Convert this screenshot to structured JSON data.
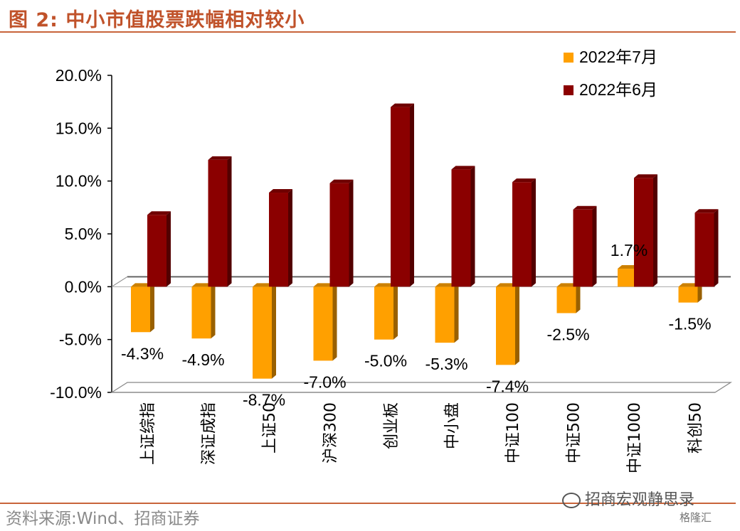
{
  "header": {
    "title": "图 2:  中小市值股票跌幅相对较小"
  },
  "footer": {
    "source": "资料来源:Wind、招商证券",
    "watermark": "招商宏观静思录",
    "brand": "格隆汇"
  },
  "colors": {
    "jul": "#ffa000",
    "jun": "#8b0000",
    "title": "#c0522a",
    "rule": "#c8643a"
  },
  "chart_data": {
    "type": "bar",
    "categories": [
      "上证综指",
      "深证成指",
      "上证50",
      "沪深300",
      "创业板",
      "中小盘",
      "中证100",
      "中证500",
      "中证1000",
      "科创50"
    ],
    "series": [
      {
        "name": "2022年7月",
        "values": [
          -4.3,
          -4.9,
          -8.7,
          -7.0,
          -5.0,
          -5.3,
          -7.4,
          -2.5,
          1.7,
          -1.5
        ],
        "labels": [
          "-4.3%",
          "-4.9%",
          "-8.7%",
          "-7.0%",
          "-5.0%",
          "-5.3%",
          "-7.4%",
          "-2.5%",
          "1.7%",
          "-1.5%"
        ]
      },
      {
        "name": "2022年6月",
        "values": [
          6.8,
          12.0,
          8.9,
          9.8,
          17.0,
          11.1,
          9.9,
          7.3,
          10.3,
          7.0
        ]
      }
    ],
    "ylim": [
      -10,
      20
    ],
    "yticks": [
      "-10.0%",
      "-5.0%",
      "0.0%",
      "5.0%",
      "10.0%",
      "15.0%",
      "20.0%"
    ],
    "legend": "top-right",
    "grid": false
  }
}
